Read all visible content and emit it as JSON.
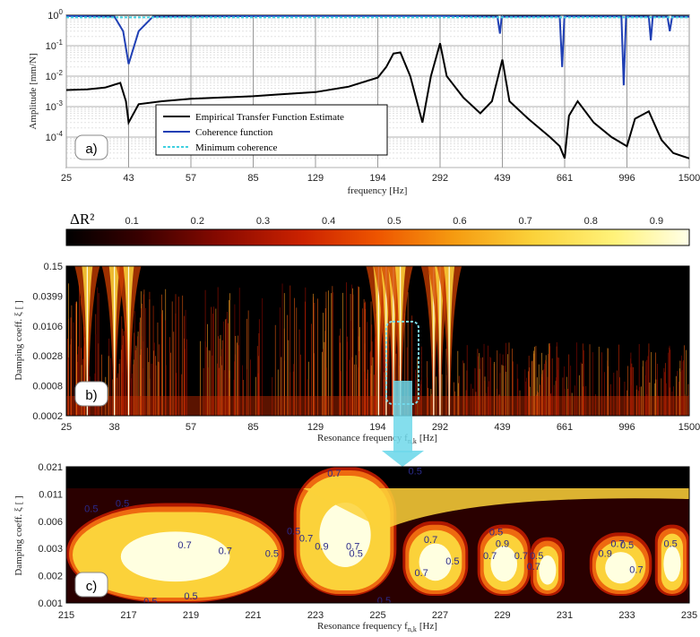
{
  "chart_data": [
    {
      "panel": "a)",
      "type": "line",
      "xlabel": "frequency [Hz]",
      "ylabel": "Amplitude [mm/N]",
      "x_ticks": [
        "25",
        "43",
        "57",
        "85",
        "129",
        "194",
        "292",
        "439",
        "661",
        "996",
        "1500"
      ],
      "y_ticks": [
        "10^0",
        "10^-1",
        "10^-2",
        "10^-3",
        "10^-4"
      ],
      "y_scale": "log",
      "ylim": [
        1e-05,
        1
      ],
      "grid": true,
      "legend_position": "bottom-left",
      "series": [
        {
          "name": "Empirical Transfer Function Estimate",
          "color": "#000000",
          "points": [
            [
              25,
              0.0035
            ],
            [
              30,
              0.0037
            ],
            [
              35,
              0.0042
            ],
            [
              40,
              0.006
            ],
            [
              42,
              0.0015
            ],
            [
              43,
              0.0003
            ],
            [
              45,
              0.0012
            ],
            [
              50,
              0.0015
            ],
            [
              57,
              0.0018
            ],
            [
              70,
              0.002
            ],
            [
              85,
              0.0022
            ],
            [
              100,
              0.0025
            ],
            [
              129,
              0.003
            ],
            [
              160,
              0.0045
            ],
            [
              194,
              0.009
            ],
            [
              205,
              0.02
            ],
            [
              215,
              0.055
            ],
            [
              225,
              0.06
            ],
            [
              240,
              0.01
            ],
            [
              260,
              0.0003
            ],
            [
              275,
              0.01
            ],
            [
              292,
              0.12
            ],
            [
              305,
              0.01
            ],
            [
              340,
              0.002
            ],
            [
              380,
              0.0006
            ],
            [
              410,
              0.0015
            ],
            [
              439,
              0.035
            ],
            [
              460,
              0.0015
            ],
            [
              520,
              0.0004
            ],
            [
              600,
              0.0001
            ],
            [
              640,
              5e-05
            ],
            [
              661,
              2e-05
            ],
            [
              680,
              0.0005
            ],
            [
              720,
              0.0015
            ],
            [
              800,
              0.0003
            ],
            [
              900,
              0.0001
            ],
            [
              996,
              5e-05
            ],
            [
              1050,
              0.0004
            ],
            [
              1150,
              0.0007
            ],
            [
              1250,
              8e-05
            ],
            [
              1350,
              3e-05
            ],
            [
              1500,
              2e-05
            ]
          ]
        },
        {
          "name": "Coherence function",
          "color": "#1f3fb4",
          "points": [
            [
              25,
              0.95
            ],
            [
              38,
              0.9
            ],
            [
              41,
              0.3
            ],
            [
              43,
              0.025
            ],
            [
              45,
              0.3
            ],
            [
              48,
              0.9
            ],
            [
              100,
              0.95
            ],
            [
              300,
              0.95
            ],
            [
              425,
              0.9
            ],
            [
              432,
              0.25
            ],
            [
              437,
              0.9
            ],
            [
              640,
              0.92
            ],
            [
              650,
              0.02
            ],
            [
              660,
              0.92
            ],
            [
              960,
              0.92
            ],
            [
              975,
              0.005
            ],
            [
              990,
              0.92
            ],
            [
              1150,
              0.9
            ],
            [
              1165,
              0.15
            ],
            [
              1180,
              0.9
            ],
            [
              1300,
              0.9
            ],
            [
              1320,
              0.3
            ],
            [
              1340,
              0.9
            ],
            [
              1500,
              0.9
            ]
          ]
        },
        {
          "name": "Minimum coherence",
          "color": "#40d0e0",
          "points": [
            [
              25,
              0.85
            ],
            [
              1500,
              0.85
            ]
          ]
        }
      ]
    },
    {
      "panel": "b)",
      "type": "heatmap",
      "colorbar_label": "ΔR²",
      "colorbar_ticks": [
        "0.1",
        "0.2",
        "0.3",
        "0.4",
        "0.5",
        "0.6",
        "0.7",
        "0.8",
        "0.9"
      ],
      "colorbar_range": [
        0,
        0.95
      ],
      "xlabel": "Resonance frequency f",
      "xlabel_sub": "n,k",
      "xlabel_unit": "[Hz]",
      "ylabel": "Damping coeff. ξ [ ]",
      "x_ticks": [
        "25",
        "38",
        "57",
        "85",
        "129",
        "194",
        "292",
        "439",
        "661",
        "996",
        "1500"
      ],
      "y_ticks": [
        "0.15",
        "0.0399",
        "0.0106",
        "0.0028",
        "0.0008",
        "0.0002"
      ],
      "ridges_hz": [
        30,
        38,
        43,
        195,
        205,
        215,
        225,
        280,
        292,
        310
      ]
    },
    {
      "panel": "c)",
      "type": "heatmap",
      "xlabel": "Resonance frequency f",
      "xlabel_sub": "n,k",
      "xlabel_unit": "[Hz]",
      "ylabel": "Damping coeff. ξ [ ]",
      "x_ticks": [
        "215",
        "217",
        "219",
        "221",
        "223",
        "225",
        "227",
        "229",
        "231",
        "233",
        "235"
      ],
      "y_ticks": [
        "0.021",
        "0.011",
        "0.006",
        "0.003",
        "0.002",
        "0.001"
      ],
      "contour_labels": [
        {
          "text": "0.5",
          "f": 215.8,
          "d": 0.008
        },
        {
          "text": "0.5",
          "f": 216.8,
          "d": 0.009
        },
        {
          "text": "0.7",
          "f": 223.6,
          "d": 0.018
        },
        {
          "text": "0.5",
          "f": 226.2,
          "d": 0.019
        },
        {
          "text": "0.7",
          "f": 218.8,
          "d": 0.0033
        },
        {
          "text": "0.7",
          "f": 220.1,
          "d": 0.0029
        },
        {
          "text": "0.5",
          "f": 221.6,
          "d": 0.0028
        },
        {
          "text": "0.5",
          "f": 222.3,
          "d": 0.0047
        },
        {
          "text": "0.7",
          "f": 222.7,
          "d": 0.0039
        },
        {
          "text": "0.9",
          "f": 223.2,
          "d": 0.0032
        },
        {
          "text": "0.7",
          "f": 224.2,
          "d": 0.0032
        },
        {
          "text": "0.5",
          "f": 224.3,
          "d": 0.0028
        },
        {
          "text": "0.7",
          "f": 226.7,
          "d": 0.0038
        },
        {
          "text": "0.7",
          "f": 226.4,
          "d": 0.0021
        },
        {
          "text": "0.5",
          "f": 227.4,
          "d": 0.0025
        },
        {
          "text": "0.5",
          "f": 228.8,
          "d": 0.0046
        },
        {
          "text": "0.9",
          "f": 229.0,
          "d": 0.0034
        },
        {
          "text": "0.7",
          "f": 228.6,
          "d": 0.0027
        },
        {
          "text": "0.7",
          "f": 229.6,
          "d": 0.0027
        },
        {
          "text": "0.5",
          "f": 230.1,
          "d": 0.0027
        },
        {
          "text": "0.7",
          "f": 230.0,
          "d": 0.0023
        },
        {
          "text": "0.9",
          "f": 232.3,
          "d": 0.0028
        },
        {
          "text": "0.7",
          "f": 233.3,
          "d": 0.0022
        },
        {
          "text": "0.7",
          "f": 232.7,
          "d": 0.0034
        },
        {
          "text": "0.5",
          "f": 233.0,
          "d": 0.0033
        },
        {
          "text": "0.5",
          "f": 234.4,
          "d": 0.0034
        },
        {
          "text": "0.5",
          "f": 217.7,
          "d": 0.00105
        },
        {
          "text": "0.5",
          "f": 219.0,
          "d": 0.0012
        },
        {
          "text": "0.5",
          "f": 225.2,
          "d": 0.00107
        }
      ]
    }
  ],
  "panel_labels": {
    "a": "a)",
    "b": "b)",
    "c": "c)"
  },
  "colormap": [
    "#000000",
    "#3a0000",
    "#8a0a00",
    "#cc2200",
    "#ee5500",
    "#f59a10",
    "#fbd23a",
    "#fff27a",
    "#ffffe8"
  ]
}
